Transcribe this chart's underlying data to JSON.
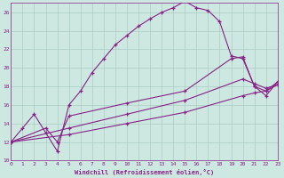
{
  "xlabel": "Windchill (Refroidissement éolien,°C)",
  "bg_color": "#cce8e0",
  "grid_color": "#aaccC4",
  "line_color": "#882288",
  "xlim": [
    0,
    23
  ],
  "ylim": [
    10,
    27
  ],
  "xticks": [
    0,
    1,
    2,
    3,
    4,
    5,
    6,
    7,
    8,
    9,
    10,
    11,
    12,
    13,
    14,
    15,
    16,
    17,
    18,
    19,
    20,
    21,
    22,
    23
  ],
  "yticks": [
    10,
    12,
    14,
    16,
    18,
    20,
    22,
    24,
    26
  ],
  "curve1_x": [
    0,
    1,
    2,
    3,
    4,
    5,
    6,
    7,
    8,
    9,
    10,
    11,
    12,
    13,
    14,
    15,
    16,
    17,
    18,
    19,
    20,
    21,
    22,
    23
  ],
  "curve1_y": [
    12.0,
    13.5,
    15.0,
    13.0,
    11.0,
    16.0,
    17.5,
    19.5,
    21.0,
    22.5,
    23.5,
    24.5,
    25.3,
    26.0,
    26.5,
    27.2,
    26.5,
    26.2,
    25.0,
    21.3,
    21.0,
    18.0,
    17.0,
    18.5
  ],
  "curve2_x": [
    0,
    3,
    4,
    5,
    10,
    15,
    19,
    20,
    21,
    22,
    23
  ],
  "curve2_y": [
    12.0,
    13.5,
    12.0,
    14.8,
    16.2,
    17.5,
    21.0,
    21.2,
    18.0,
    17.5,
    18.5
  ],
  "curve3_x": [
    0,
    5,
    10,
    15,
    20,
    21,
    22,
    23
  ],
  "curve3_y": [
    12.0,
    13.5,
    15.0,
    16.5,
    18.8,
    18.3,
    17.8,
    18.2
  ],
  "curve4_x": [
    0,
    5,
    10,
    15,
    20,
    21,
    22,
    23
  ],
  "curve4_y": [
    12.0,
    12.8,
    14.0,
    15.2,
    17.0,
    17.3,
    17.5,
    18.2
  ]
}
